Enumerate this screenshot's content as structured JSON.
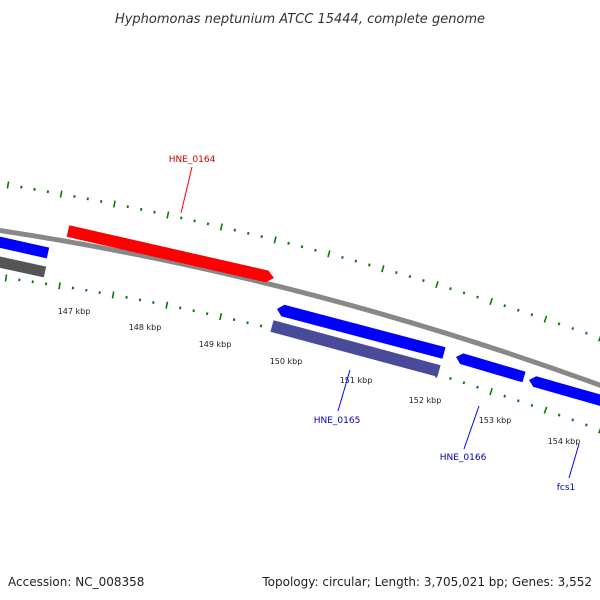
{
  "header": {
    "title": "Hyphomonas neptunium ATCC 15444, complete genome"
  },
  "footer": {
    "accession": "Accession: NC_008358",
    "summary": "Topology: circular; Length: 3,705,021 bp; Genes: 3,552"
  },
  "ruler": {
    "labels": [
      "147 kbp",
      "148 kbp",
      "149 kbp",
      "150 kbp",
      "151 kbp",
      "152 kbp",
      "153 kbp",
      "154 kbp"
    ]
  },
  "genes": [
    {
      "name": "HNE_0164",
      "strand": "forward",
      "color": "#ff0000"
    },
    {
      "name": "HNE_0165",
      "strand": "reverse",
      "color": "#0000ff"
    },
    {
      "name": "HNE_0166",
      "strand": "reverse",
      "color": "#0000ff"
    },
    {
      "name": "fcs1",
      "strand": "reverse",
      "color": "#0000ff"
    }
  ],
  "colors": {
    "forward_cds": "#ff0000",
    "reverse_cds": "#0000ff",
    "reverse_feature": "#4a4a9a",
    "other_feature": "#555555",
    "backbone": "#888888",
    "tick": "#0a7a0a"
  }
}
